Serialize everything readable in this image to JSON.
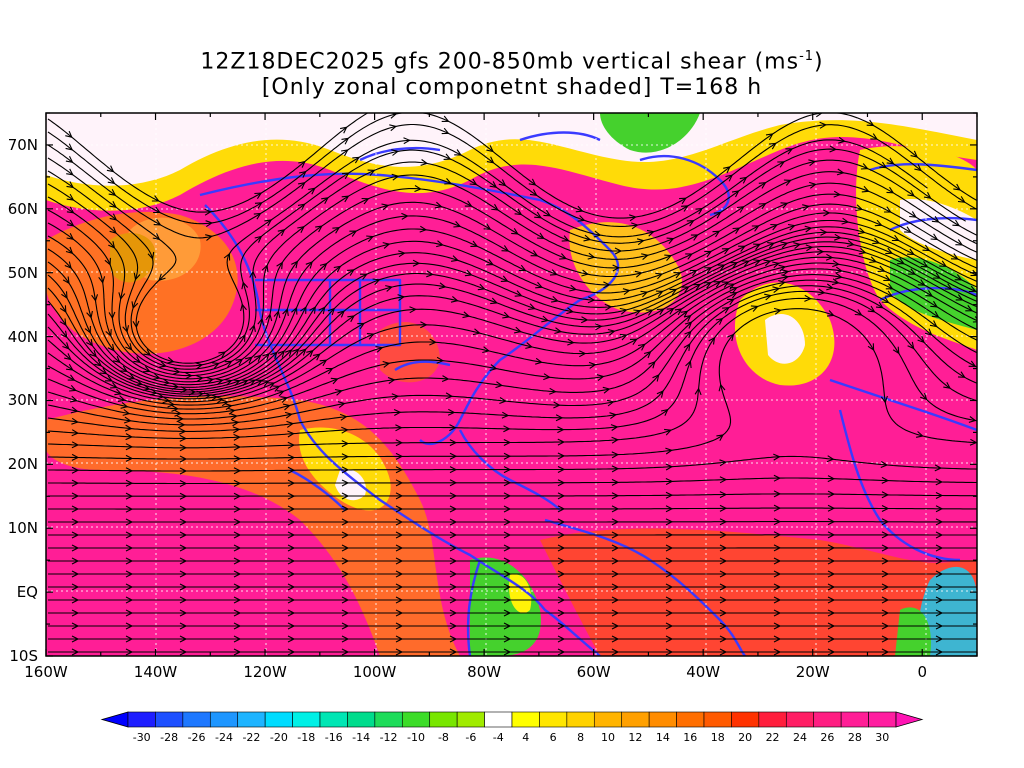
{
  "title": {
    "line1": "12Z18DEC2025 gfs 200-850mb vertical shear (ms",
    "line1_sup": "-1",
    "line1_end": ")",
    "line2": "[Only zonal componetnt shaded] T=168 h"
  },
  "map": {
    "lon_range": [
      -160,
      10
    ],
    "lat_range": [
      -10,
      75
    ],
    "lat_labels": [
      "70N",
      "60N",
      "50N",
      "40N",
      "30N",
      "20N",
      "10N",
      "EQ",
      "10S"
    ],
    "lat_values": [
      70,
      60,
      50,
      40,
      30,
      20,
      10,
      0,
      -10
    ],
    "lon_labels": [
      "160W",
      "140W",
      "120W",
      "100W",
      "80W",
      "60W",
      "40W",
      "20W",
      "0"
    ],
    "lon_values": [
      -160,
      -140,
      -120,
      -100,
      -80,
      -60,
      -40,
      -20,
      0
    ],
    "coastline_color": "#3a3aff",
    "streamline_color": "#000000",
    "gridline_color": "#ffffff"
  },
  "colorbar": {
    "labels": [
      "-30",
      "-28",
      "-26",
      "-24",
      "-22",
      "-20",
      "-18",
      "-16",
      "-14",
      "-12",
      "-10",
      "-8",
      "-6",
      "-4",
      "4",
      "6",
      "8",
      "10",
      "12",
      "14",
      "16",
      "18",
      "20",
      "22",
      "24",
      "26",
      "28",
      "30"
    ],
    "colors": [
      "#1e1eff",
      "#1e50ff",
      "#1e78ff",
      "#1e96ff",
      "#1eb4ff",
      "#00dcff",
      "#00f0e6",
      "#00e6b4",
      "#00dc8c",
      "#1edc5a",
      "#3cdc28",
      "#78e600",
      "#a0eb00",
      "#ffffff",
      "#ffff00",
      "#ffe600",
      "#ffd200",
      "#ffb400",
      "#ffa000",
      "#ff8c00",
      "#ff6e00",
      "#ff5a00",
      "#ff3200",
      "#ff1e3c",
      "#ff1e64",
      "#ff1e82",
      "#ff1e96",
      "#ff1ea0"
    ],
    "left_arrow_color": "#0000ff",
    "right_arrow_color": "#ff14b4"
  }
}
